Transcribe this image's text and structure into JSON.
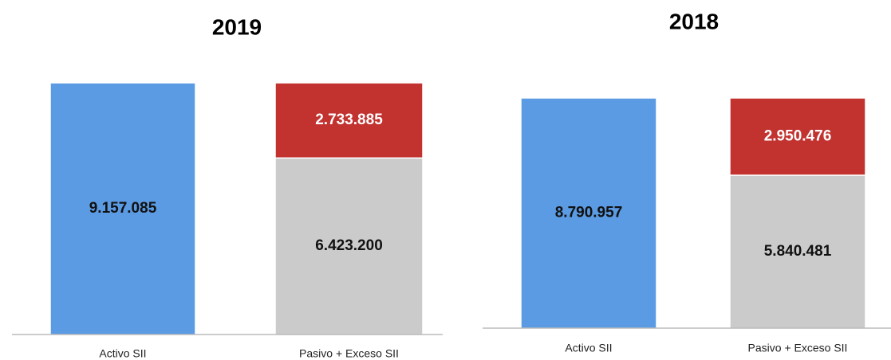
{
  "chart_data": [
    {
      "type": "bar",
      "stacked": true,
      "title": "2019",
      "categories": [
        "Activo SII",
        "Pasivo + Exceso SII"
      ],
      "series": [
        {
          "color": "#5b9be3",
          "values": [
            9157085,
            null
          ],
          "value_labels": [
            "9.157.085",
            null
          ]
        },
        {
          "color": "#cbcbcb",
          "values": [
            null,
            6423200
          ],
          "value_labels": [
            null,
            "6.423.200"
          ]
        },
        {
          "color": "#c23330",
          "values": [
            null,
            2733885
          ],
          "value_labels": [
            null,
            "2.733.885"
          ]
        }
      ]
    },
    {
      "type": "bar",
      "stacked": true,
      "title": "2018",
      "categories": [
        "Activo SII",
        "Pasivo + Exceso SII"
      ],
      "series": [
        {
          "color": "#5b9be3",
          "values": [
            8790957,
            null
          ],
          "value_labels": [
            "8.790.957",
            null
          ]
        },
        {
          "color": "#cbcbcb",
          "values": [
            null,
            5840481
          ],
          "value_labels": [
            null,
            "5.840.481"
          ]
        },
        {
          "color": "#c23330",
          "values": [
            null,
            2950476
          ],
          "value_labels": [
            null,
            "2.950.476"
          ]
        }
      ]
    }
  ]
}
